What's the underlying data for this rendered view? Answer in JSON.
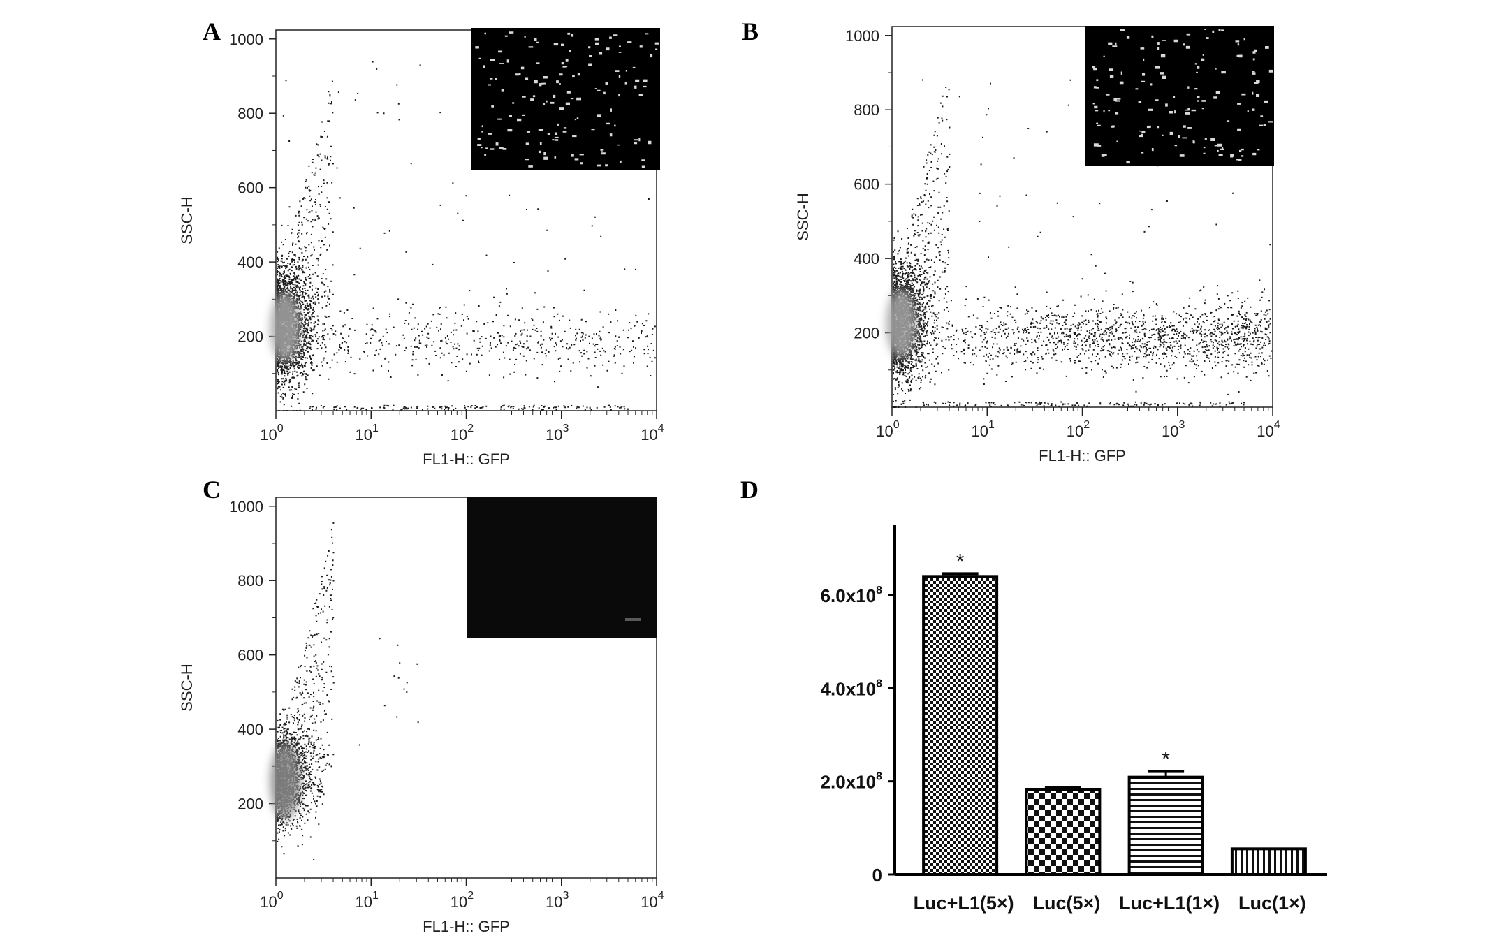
{
  "panels": [
    {
      "letter": "A",
      "type": "scatter",
      "xlabel": "FL1-H:: GFP",
      "ylabel": "SSC-H",
      "x_scale": "log",
      "xlim": [
        1,
        10000
      ],
      "ylim": [
        0,
        1024
      ],
      "y_ticks": [
        "200",
        "400",
        "600",
        "800",
        "1000"
      ],
      "x_tick_bases": [
        "10",
        "10",
        "10",
        "10",
        "10"
      ],
      "x_tick_exponents": [
        "0",
        "1",
        "2",
        "3",
        "4"
      ],
      "inset": {
        "brightness": "bright",
        "color": "#000000"
      },
      "point_color": "#1a1a1a",
      "density_color": "#a8a8a8"
    },
    {
      "letter": "B",
      "type": "scatter",
      "xlabel": "FL1-H:: GFP",
      "ylabel": "SSC-H",
      "x_scale": "log",
      "xlim": [
        1,
        10000
      ],
      "ylim": [
        0,
        1024
      ],
      "y_ticks": [
        "200",
        "400",
        "600",
        "800",
        "1000"
      ],
      "x_tick_bases": [
        "10",
        "10",
        "10",
        "10",
        "10"
      ],
      "x_tick_exponents": [
        "0",
        "1",
        "2",
        "3",
        "4"
      ],
      "inset": {
        "brightness": "bright",
        "color": "#000000"
      },
      "point_color": "#1a1a1a",
      "density_color": "#a8a8a8"
    },
    {
      "letter": "C",
      "type": "scatter",
      "xlabel": "FL1-H:: GFP",
      "ylabel": "SSC-H",
      "x_scale": "log",
      "xlim": [
        1,
        10000
      ],
      "ylim": [
        0,
        1024
      ],
      "y_ticks": [
        "200",
        "400",
        "600",
        "800",
        "1000"
      ],
      "x_tick_bases": [
        "10",
        "10",
        "10",
        "10",
        "10"
      ],
      "x_tick_exponents": [
        "0",
        "1",
        "2",
        "3",
        "4"
      ],
      "inset": {
        "brightness": "dark",
        "color": "#0a0a0a"
      },
      "point_color": "#1a1a1a",
      "density_color": "#8c8c8c"
    },
    {
      "letter": "D"
    }
  ],
  "chart_data": {
    "type": "bar",
    "title": "",
    "xlabel": "",
    "ylabel": "",
    "categories": [
      "Luc+L1(5×)",
      "Luc(5×)",
      "Luc+L1(1×)",
      "Luc(1×)"
    ],
    "values": [
      640000000,
      183000000,
      209000000,
      55000000
    ],
    "errors": [
      6000000,
      4000000,
      12000000,
      0
    ],
    "significance": [
      "*",
      "",
      "*",
      ""
    ],
    "patterns": [
      "checker-fine",
      "checker-coarse",
      "horizontal-stripes",
      "vertical-stripes"
    ],
    "ylim": [
      0,
      750000000
    ],
    "y_ticks": [
      {
        "value": 0,
        "mantissa": "0",
        "exponent": ""
      },
      {
        "value": 200000000,
        "mantissa": "2.0x10",
        "exponent": "8"
      },
      {
        "value": 400000000,
        "mantissa": "4.0x10",
        "exponent": "8"
      },
      {
        "value": 600000000,
        "mantissa": "6.0x10",
        "exponent": "8"
      }
    ],
    "grid": false,
    "legend": "none"
  }
}
